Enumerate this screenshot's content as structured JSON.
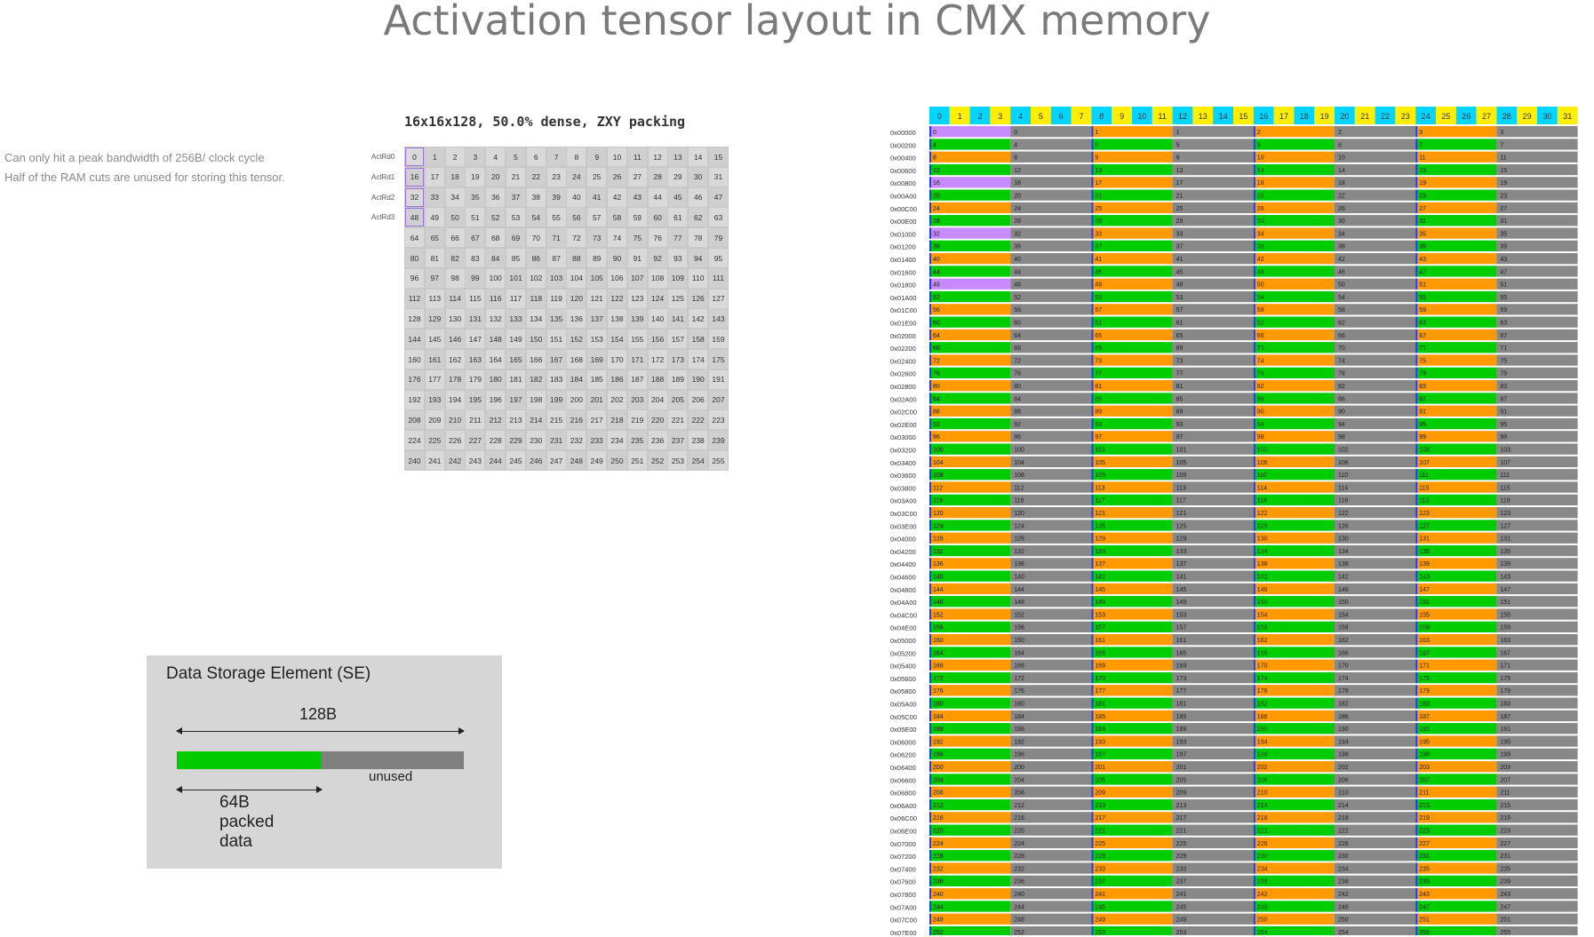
{
  "title": "Activation tensor layout in CMX memory",
  "captions": [
    "Can only hit a peak bandwidth of 256B/ clock cycle",
    "Half of the RAM cuts are unused for storing this tensor."
  ],
  "grid": {
    "title": "16x16x128, 50.0% dense, ZXY packing",
    "rows": 16,
    "cols": 16,
    "row_labels": [
      "ActRd0",
      "ActRd1",
      "ActRd2",
      "ActRd3"
    ]
  },
  "storage_element": {
    "title": "Data Storage Element (SE)",
    "total_label": "128B",
    "unused_label": "unused",
    "packed_label_lines": [
      "64B",
      "packed",
      "data"
    ]
  },
  "memory_map": {
    "column_headers": [
      "0",
      "1",
      "2",
      "3",
      "4",
      "5",
      "6",
      "7",
      "8",
      "9",
      "10",
      "11",
      "12",
      "13",
      "14",
      "15",
      "16",
      "17",
      "18",
      "19",
      "20",
      "21",
      "22",
      "23",
      "24",
      "25",
      "26",
      "27",
      "28",
      "29",
      "30",
      "31"
    ],
    "header_colors": [
      "#00d4ff",
      "#ffee00"
    ],
    "row_count": 64,
    "address_step": 512,
    "colors": {
      "orange": "#ff9900",
      "green": "#00cc00",
      "gray": "#888888",
      "purple": "#c78bff",
      "blue": "#1a3cff"
    }
  }
}
